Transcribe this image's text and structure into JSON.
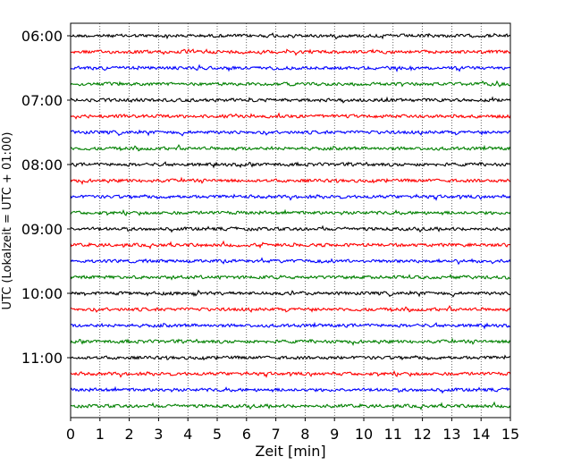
{
  "chart_data": {
    "type": "line",
    "subtype": "helicorder",
    "xlabel": "Zeit  [min]",
    "ylabel": "UTC (Lokalzeit = UTC + 01:00)",
    "xlim": [
      0,
      15
    ],
    "x_ticks": [
      "0",
      "1",
      "2",
      "3",
      "4",
      "5",
      "6",
      "7",
      "8",
      "9",
      "10",
      "11",
      "12",
      "13",
      "14",
      "15"
    ],
    "x_grid": "dotted vertical lines at each minute",
    "trace_interval_minutes": 15,
    "trace_colors": [
      "#000000",
      "#ff0000",
      "#0000ff",
      "#008000"
    ],
    "traces": [
      {
        "start": "06:00"
      },
      {
        "start": "06:15"
      },
      {
        "start": "06:30"
      },
      {
        "start": "06:45"
      },
      {
        "start": "07:00"
      },
      {
        "start": "07:15"
      },
      {
        "start": "07:30"
      },
      {
        "start": "07:45"
      },
      {
        "start": "08:00"
      },
      {
        "start": "08:15"
      },
      {
        "start": "08:30"
      },
      {
        "start": "08:45"
      },
      {
        "start": "09:00"
      },
      {
        "start": "09:15"
      },
      {
        "start": "09:30"
      },
      {
        "start": "09:45"
      },
      {
        "start": "10:00"
      },
      {
        "start": "10:15"
      },
      {
        "start": "10:30"
      },
      {
        "start": "10:45"
      },
      {
        "start": "11:00"
      },
      {
        "start": "11:15"
      },
      {
        "start": "11:30"
      },
      {
        "start": "11:45"
      }
    ],
    "y_tick_labels": [
      "06:00",
      "07:00",
      "08:00",
      "09:00",
      "10:00",
      "11:00"
    ],
    "signal": "low-amplitude seismic noise, no distinct events"
  }
}
